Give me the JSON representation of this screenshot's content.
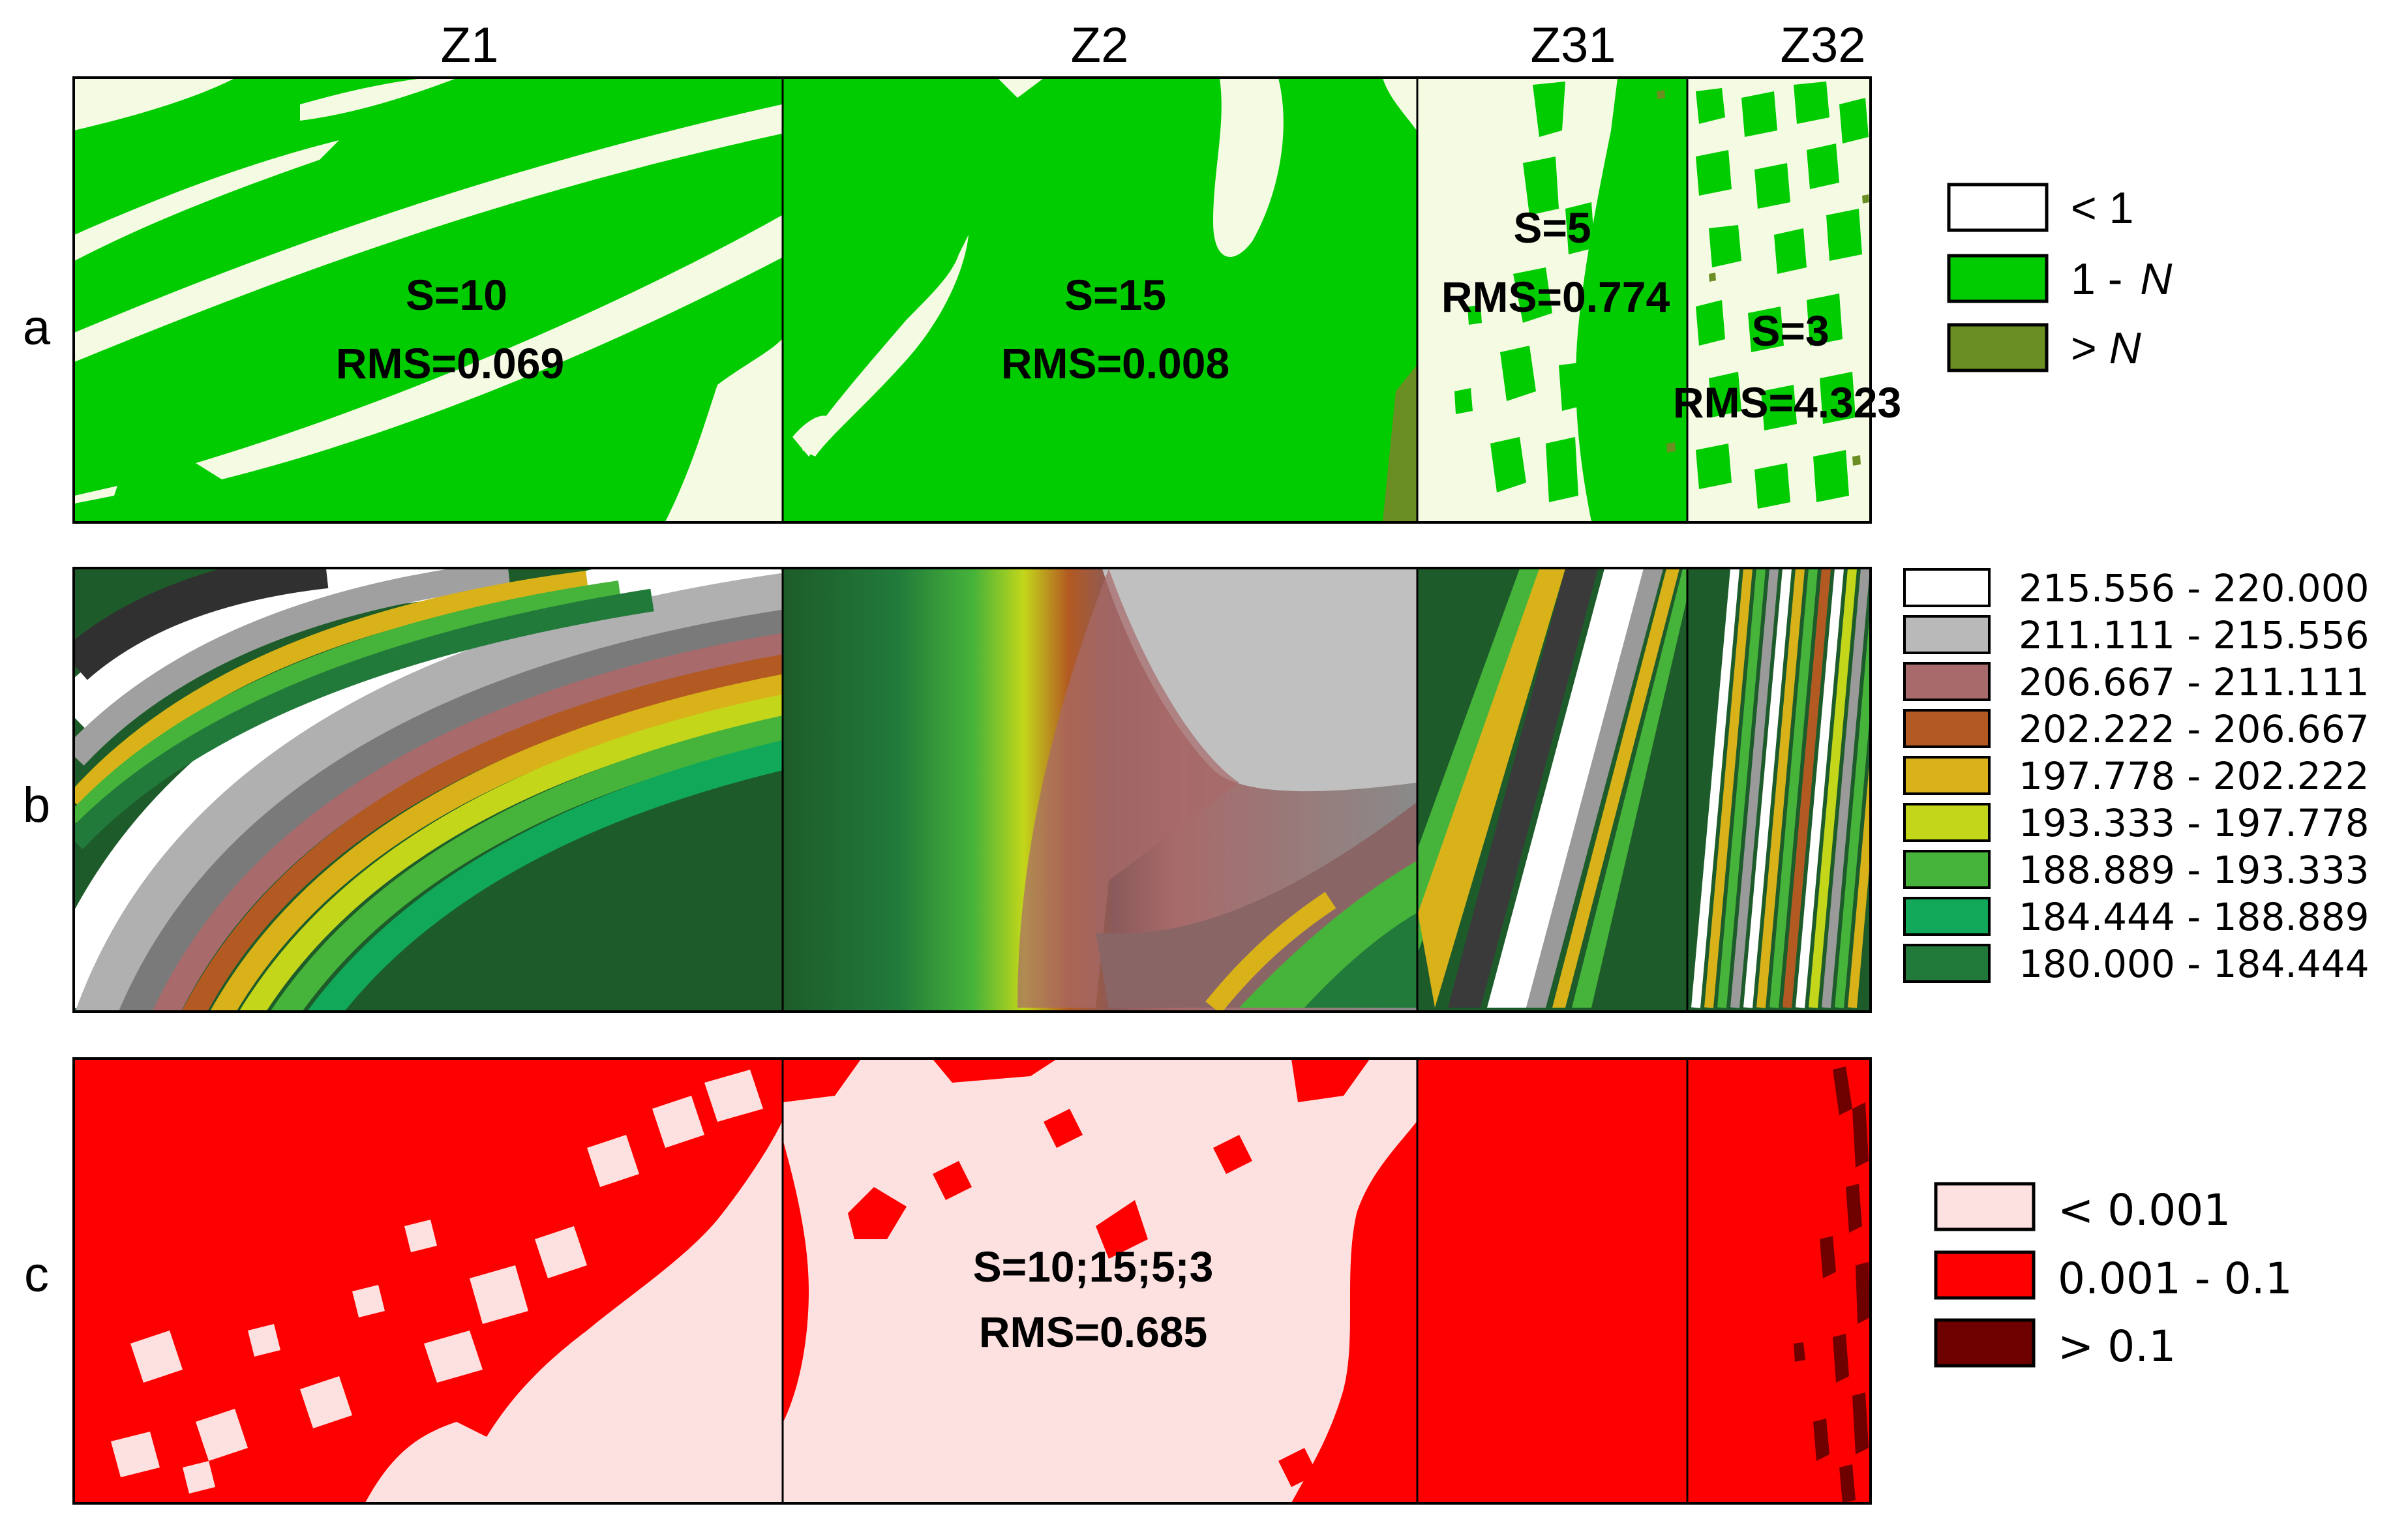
{
  "zones": [
    {
      "id": "z1",
      "label": "Z1"
    },
    {
      "id": "z2",
      "label": "Z2"
    },
    {
      "id": "z31",
      "label": "Z31"
    },
    {
      "id": "z32",
      "label": "Z32"
    }
  ],
  "rows": [
    {
      "id": "a",
      "label": "a"
    },
    {
      "id": "b",
      "label": "b"
    },
    {
      "id": "c",
      "label": "c"
    }
  ],
  "panel_a": {
    "annotations": [
      {
        "zone": "Z1",
        "s": "S=10",
        "rms": "RMS=0.069"
      },
      {
        "zone": "Z2",
        "s": "S=15",
        "rms": "RMS=0.008"
      },
      {
        "zone": "Z31",
        "s": "S=5",
        "rms": "RMS=0.774"
      },
      {
        "zone": "Z32",
        "s": "S=3",
        "rms": "RMS=4.323"
      }
    ],
    "legend": [
      {
        "prefix": "< 1",
        "italic": "",
        "color": "#ffffff"
      },
      {
        "prefix": "1 - ",
        "italic": "N",
        "color": "#00cc00"
      },
      {
        "prefix": "> ",
        "italic": "N",
        "color": "#6b8e23"
      }
    ],
    "colors": {
      "background": "#f5fbe3",
      "green": "#00cc00",
      "olive": "#6b8e23"
    }
  },
  "panel_b": {
    "legend": [
      {
        "label": "215.556 - 220.000",
        "color": "#ffffff"
      },
      {
        "label": "211.111 - 215.556",
        "color": "#b9b9b9"
      },
      {
        "label": "206.667 - 211.111",
        "color": "#a86a6a"
      },
      {
        "label": "202.222 - 206.667",
        "color": "#b35a22"
      },
      {
        "label": "197.778 - 202.222",
        "color": "#d9b21a"
      },
      {
        "label": "193.333 - 197.778",
        "color": "#c3d61a"
      },
      {
        "label": "188.889 - 193.333",
        "color": "#46b33a"
      },
      {
        "label": "184.444 - 188.889",
        "color": "#11a859"
      },
      {
        "label": "180.000 - 184.444",
        "color": "#217a3a"
      }
    ]
  },
  "panel_c": {
    "annotation": {
      "s": "S=10;15;5;3",
      "rms": "RMS=0.685"
    },
    "legend": [
      {
        "label": "< 0.001",
        "color": "#fde0e0"
      },
      {
        "label": "0.001 -  0.1",
        "color": "#ff0000"
      },
      {
        "label": "> 0.1",
        "color": "#6e0000"
      }
    ],
    "colors": {
      "light": "#fde0e0",
      "red": "#ff0000",
      "dark": "#6e0000"
    }
  }
}
